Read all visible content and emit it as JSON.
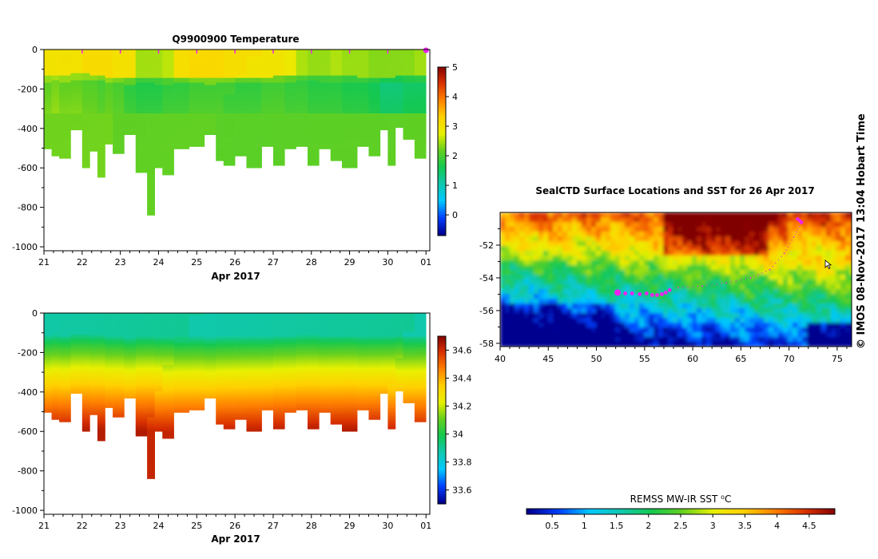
{
  "chart_data": [
    {
      "id": "temperature",
      "type": "heatmap",
      "title": "Q9900900  Temperature",
      "xlabel": "Apr 2017",
      "ylabel": "",
      "x_ticks": [
        "21",
        "22",
        "23",
        "24",
        "25",
        "26",
        "27",
        "28",
        "29",
        "30",
        "01"
      ],
      "y_ticks": [
        "0",
        "-200",
        "-400",
        "-600",
        "-800",
        "-1000"
      ],
      "ylim": [
        -1020,
        0
      ],
      "colorbar": {
        "min": -0.7,
        "max": 5,
        "ticks": [
          "0",
          "1",
          "2",
          "3",
          "4",
          "5"
        ]
      },
      "profile_markers": [
        22,
        23,
        24,
        25,
        26,
        27,
        28,
        29,
        30,
        31
      ],
      "profiles": [
        {
          "x": 21.0,
          "w": 0.2,
          "depth": 500,
          "mixed": 135,
          "surf": 3.0,
          "mid": 2.1,
          "deep": 2.2
        },
        {
          "x": 21.2,
          "w": 0.2,
          "depth": 540,
          "mixed": 130,
          "surf": 3.0,
          "mid": 2.2,
          "deep": 2.2
        },
        {
          "x": 21.4,
          "w": 0.3,
          "depth": 550,
          "mixed": 135,
          "surf": 3.0,
          "mid": 2.1,
          "deep": 2.2
        },
        {
          "x": 21.7,
          "w": 0.3,
          "depth": 400,
          "mixed": 125,
          "surf": 3.0,
          "mid": 2.1,
          "deep": 2.2
        },
        {
          "x": 22.0,
          "w": 0.2,
          "depth": 590,
          "mixed": 125,
          "surf": 3.1,
          "mid": 2.0,
          "deep": 2.2
        },
        {
          "x": 22.2,
          "w": 0.2,
          "depth": 510,
          "mixed": 130,
          "surf": 3.1,
          "mid": 2.0,
          "deep": 2.2
        },
        {
          "x": 22.4,
          "w": 0.2,
          "depth": 640,
          "mixed": 130,
          "surf": 3.1,
          "mid": 1.9,
          "deep": 2.2
        },
        {
          "x": 22.6,
          "w": 0.2,
          "depth": 470,
          "mixed": 140,
          "surf": 3.1,
          "mid": 2.0,
          "deep": 2.2
        },
        {
          "x": 22.8,
          "w": 0.3,
          "depth": 520,
          "mixed": 140,
          "surf": 3.0,
          "mid": 1.9,
          "deep": 2.1
        },
        {
          "x": 23.1,
          "w": 0.3,
          "depth": 430,
          "mixed": 150,
          "surf": 3.0,
          "mid": 1.7,
          "deep": 2.1
        },
        {
          "x": 23.4,
          "w": 0.3,
          "depth": 620,
          "mixed": 140,
          "surf": 2.4,
          "mid": 1.6,
          "deep": 2.1
        },
        {
          "x": 23.7,
          "w": 0.2,
          "depth": 835,
          "mixed": 140,
          "surf": 2.4,
          "mid": 1.6,
          "deep": 2.1
        },
        {
          "x": 23.9,
          "w": 0.2,
          "depth": 590,
          "mixed": 145,
          "surf": 2.4,
          "mid": 1.6,
          "deep": 2.1
        },
        {
          "x": 24.1,
          "w": 0.3,
          "depth": 630,
          "mixed": 145,
          "surf": 2.5,
          "mid": 1.7,
          "deep": 2.1
        },
        {
          "x": 24.4,
          "w": 0.4,
          "depth": 500,
          "mixed": 140,
          "surf": 3.0,
          "mid": 1.7,
          "deep": 2.1
        },
        {
          "x": 24.8,
          "w": 0.4,
          "depth": 490,
          "mixed": 140,
          "surf": 3.1,
          "mid": 1.8,
          "deep": 2.1
        },
        {
          "x": 25.2,
          "w": 0.3,
          "depth": 430,
          "mixed": 145,
          "surf": 3.1,
          "mid": 1.8,
          "deep": 2.1
        },
        {
          "x": 25.5,
          "w": 0.2,
          "depth": 560,
          "mixed": 140,
          "surf": 3.1,
          "mid": 1.8,
          "deep": 2.1
        },
        {
          "x": 25.7,
          "w": 0.3,
          "depth": 580,
          "mixed": 140,
          "surf": 3.0,
          "mid": 1.8,
          "deep": 2.1
        },
        {
          "x": 26.0,
          "w": 0.3,
          "depth": 530,
          "mixed": 140,
          "surf": 3.0,
          "mid": 1.8,
          "deep": 2.1
        },
        {
          "x": 26.3,
          "w": 0.4,
          "depth": 600,
          "mixed": 140,
          "surf": 3.0,
          "mid": 1.8,
          "deep": 2.1
        },
        {
          "x": 26.7,
          "w": 0.3,
          "depth": 490,
          "mixed": 140,
          "surf": 3.0,
          "mid": 1.9,
          "deep": 2.1
        },
        {
          "x": 27.0,
          "w": 0.3,
          "depth": 580,
          "mixed": 135,
          "surf": 3.0,
          "mid": 1.9,
          "deep": 2.1
        },
        {
          "x": 27.3,
          "w": 0.3,
          "depth": 500,
          "mixed": 135,
          "surf": 2.9,
          "mid": 1.8,
          "deep": 2.1
        },
        {
          "x": 27.6,
          "w": 0.3,
          "depth": 490,
          "mixed": 130,
          "surf": 2.5,
          "mid": 1.8,
          "deep": 2.1
        },
        {
          "x": 27.9,
          "w": 0.3,
          "depth": 580,
          "mixed": 130,
          "surf": 2.4,
          "mid": 1.7,
          "deep": 2.1
        },
        {
          "x": 28.2,
          "w": 0.3,
          "depth": 500,
          "mixed": 135,
          "surf": 2.4,
          "mid": 1.7,
          "deep": 2.1
        },
        {
          "x": 28.5,
          "w": 0.3,
          "depth": 560,
          "mixed": 135,
          "surf": 2.5,
          "mid": 1.7,
          "deep": 2.1
        },
        {
          "x": 28.8,
          "w": 0.4,
          "depth": 595,
          "mixed": 135,
          "surf": 2.4,
          "mid": 1.6,
          "deep": 2.1
        },
        {
          "x": 29.2,
          "w": 0.3,
          "depth": 490,
          "mixed": 140,
          "surf": 2.4,
          "mid": 1.6,
          "deep": 2.1
        },
        {
          "x": 29.5,
          "w": 0.3,
          "depth": 530,
          "mixed": 140,
          "surf": 2.3,
          "mid": 1.5,
          "deep": 2.1
        },
        {
          "x": 29.8,
          "w": 0.2,
          "depth": 400,
          "mixed": 140,
          "surf": 2.3,
          "mid": 1.3,
          "deep": 2.1
        },
        {
          "x": 30.0,
          "w": 0.2,
          "depth": 580,
          "mixed": 140,
          "surf": 2.3,
          "mid": 1.3,
          "deep": 2.1
        },
        {
          "x": 30.2,
          "w": 0.2,
          "depth": 390,
          "mixed": 135,
          "surf": 2.3,
          "mid": 1.3,
          "deep": 2.1
        },
        {
          "x": 30.4,
          "w": 0.3,
          "depth": 450,
          "mixed": 135,
          "surf": 2.3,
          "mid": 1.4,
          "deep": 2.1
        },
        {
          "x": 30.7,
          "w": 0.3,
          "depth": 545,
          "mixed": 135,
          "surf": 2.4,
          "mid": 1.4,
          "deep": 2.1
        }
      ]
    },
    {
      "id": "salinity",
      "type": "heatmap",
      "title": "",
      "xlabel": "Apr 2017",
      "ylabel": "",
      "x_ticks": [
        "21",
        "22",
        "23",
        "24",
        "25",
        "26",
        "27",
        "28",
        "29",
        "30",
        "01"
      ],
      "y_ticks": [
        "0",
        "-200",
        "-400",
        "-600",
        "-800",
        "-1000"
      ],
      "ylim": [
        -1020,
        0
      ],
      "colorbar": {
        "min": 33.5,
        "max": 34.7,
        "ticks": [
          "33.6",
          "33.8",
          "34",
          "34.2",
          "34.4",
          "34.6"
        ]
      },
      "surface_value": 33.88,
      "deep_value": 34.62
    },
    {
      "id": "sst_map",
      "type": "heatmap",
      "title": "SealCTD Surface Locations and SST for 26 Apr 2017",
      "xlabel": "",
      "ylabel": "",
      "x_ticks": [
        "40",
        "45",
        "50",
        "55",
        "60",
        "65",
        "70",
        "75"
      ],
      "y_ticks": [
        "-52",
        "-54",
        "-56",
        "-58"
      ],
      "xlim": [
        40,
        76.5
      ],
      "ylim": [
        -58.2,
        -50
      ],
      "colorbar": {
        "label": "REMSS MW-IR SST ⁰C",
        "min": 0.1,
        "max": 4.9,
        "ticks": [
          "0.5",
          "1",
          "1.5",
          "2",
          "2.5",
          "3",
          "3.5",
          "4",
          "4.5"
        ]
      },
      "track_points": [
        {
          "lon": 52.2,
          "lat": -54.9
        },
        {
          "lon": 53.0,
          "lat": -54.95
        },
        {
          "lon": 53.7,
          "lat": -54.95
        },
        {
          "lon": 54.5,
          "lat": -55.0
        },
        {
          "lon": 55.2,
          "lat": -54.95
        },
        {
          "lon": 55.8,
          "lat": -55.05
        },
        {
          "lon": 56.3,
          "lat": -55.05
        },
        {
          "lon": 56.8,
          "lat": -55.0
        },
        {
          "lon": 57.2,
          "lat": -54.9
        },
        {
          "lon": 57.6,
          "lat": -54.75
        }
      ],
      "recent_points": [
        {
          "lon": 70.9,
          "lat": -50.4
        },
        {
          "lon": 71.1,
          "lat": -50.5
        },
        {
          "lon": 71.3,
          "lat": -50.6
        }
      ],
      "faint_track": [
        {
          "lon": 58.5,
          "lat": -54.6
        },
        {
          "lon": 61,
          "lat": -54.5
        },
        {
          "lon": 63.5,
          "lat": -54.3
        },
        {
          "lon": 66,
          "lat": -54.0
        },
        {
          "lon": 68,
          "lat": -53.5
        },
        {
          "lon": 69.5,
          "lat": -52.5
        },
        {
          "lon": 70.5,
          "lat": -51.5
        },
        {
          "lon": 71.2,
          "lat": -50.7
        }
      ]
    }
  ],
  "footer_stamp": "© IMOS 08-Nov-2017 13:04 Hobart Time",
  "colors": {
    "marker": "#ee22ee",
    "frame": "#000000",
    "colormap": [
      "#00008f",
      "#0040ff",
      "#00c8ff",
      "#10c8b0",
      "#14c850",
      "#64d020",
      "#e8f000",
      "#ffd000",
      "#ff8000",
      "#d83000",
      "#800000"
    ]
  }
}
